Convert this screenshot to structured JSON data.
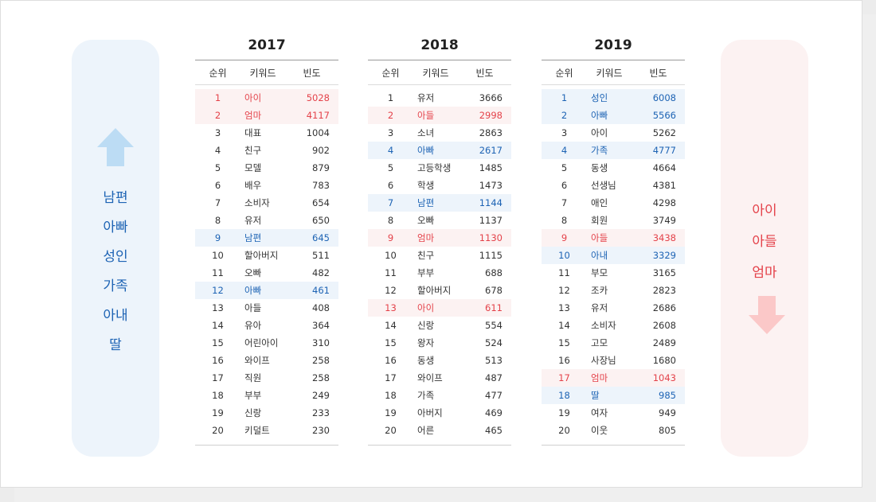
{
  "left_panel": {
    "words": [
      "남편",
      "아빠",
      "성인",
      "가족",
      "아내",
      "딸"
    ],
    "color": "#1d63b4",
    "bg": "#edf4fb",
    "icon": "arrow-up-icon"
  },
  "right_panel": {
    "words": [
      "아이",
      "아들",
      "엄마"
    ],
    "color": "#e4424a",
    "bg": "#fcf2f2",
    "icon": "arrow-down-icon"
  },
  "headers": {
    "rank": "순위",
    "keyword": "키워드",
    "freq": "빈도"
  },
  "tables": [
    {
      "year": "2017",
      "rows": [
        {
          "rank": "1",
          "kw": "아이",
          "freq": "5028",
          "hl": "red"
        },
        {
          "rank": "2",
          "kw": "엄마",
          "freq": "4117",
          "hl": "red"
        },
        {
          "rank": "3",
          "kw": "대표",
          "freq": "1004",
          "hl": ""
        },
        {
          "rank": "4",
          "kw": "친구",
          "freq": "902",
          "hl": ""
        },
        {
          "rank": "5",
          "kw": "모델",
          "freq": "879",
          "hl": ""
        },
        {
          "rank": "6",
          "kw": "배우",
          "freq": "783",
          "hl": ""
        },
        {
          "rank": "7",
          "kw": "소비자",
          "freq": "654",
          "hl": ""
        },
        {
          "rank": "8",
          "kw": "유저",
          "freq": "650",
          "hl": ""
        },
        {
          "rank": "9",
          "kw": "남편",
          "freq": "645",
          "hl": "blue"
        },
        {
          "rank": "10",
          "kw": "할아버지",
          "freq": "511",
          "hl": ""
        },
        {
          "rank": "11",
          "kw": "오빠",
          "freq": "482",
          "hl": ""
        },
        {
          "rank": "12",
          "kw": "아빠",
          "freq": "461",
          "hl": "blue"
        },
        {
          "rank": "13",
          "kw": "아들",
          "freq": "408",
          "hl": ""
        },
        {
          "rank": "14",
          "kw": "유아",
          "freq": "364",
          "hl": ""
        },
        {
          "rank": "15",
          "kw": "어린아이",
          "freq": "310",
          "hl": ""
        },
        {
          "rank": "16",
          "kw": "와이프",
          "freq": "258",
          "hl": ""
        },
        {
          "rank": "17",
          "kw": "직원",
          "freq": "258",
          "hl": ""
        },
        {
          "rank": "18",
          "kw": "부부",
          "freq": "249",
          "hl": ""
        },
        {
          "rank": "19",
          "kw": "신랑",
          "freq": "233",
          "hl": ""
        },
        {
          "rank": "20",
          "kw": "키덜트",
          "freq": "230",
          "hl": ""
        }
      ]
    },
    {
      "year": "2018",
      "rows": [
        {
          "rank": "1",
          "kw": "유저",
          "freq": "3666",
          "hl": ""
        },
        {
          "rank": "2",
          "kw": "아들",
          "freq": "2998",
          "hl": "red"
        },
        {
          "rank": "3",
          "kw": "소녀",
          "freq": "2863",
          "hl": ""
        },
        {
          "rank": "4",
          "kw": "아빠",
          "freq": "2617",
          "hl": "blue"
        },
        {
          "rank": "5",
          "kw": "고등학생",
          "freq": "1485",
          "hl": ""
        },
        {
          "rank": "6",
          "kw": "학생",
          "freq": "1473",
          "hl": ""
        },
        {
          "rank": "7",
          "kw": "남편",
          "freq": "1144",
          "hl": "blue"
        },
        {
          "rank": "8",
          "kw": "오빠",
          "freq": "1137",
          "hl": ""
        },
        {
          "rank": "9",
          "kw": "엄마",
          "freq": "1130",
          "hl": "red"
        },
        {
          "rank": "10",
          "kw": "친구",
          "freq": "1115",
          "hl": ""
        },
        {
          "rank": "11",
          "kw": "부부",
          "freq": "688",
          "hl": ""
        },
        {
          "rank": "12",
          "kw": "할아버지",
          "freq": "678",
          "hl": ""
        },
        {
          "rank": "13",
          "kw": "아이",
          "freq": "611",
          "hl": "red"
        },
        {
          "rank": "14",
          "kw": "신랑",
          "freq": "554",
          "hl": ""
        },
        {
          "rank": "15",
          "kw": "왕자",
          "freq": "524",
          "hl": ""
        },
        {
          "rank": "16",
          "kw": "동생",
          "freq": "513",
          "hl": ""
        },
        {
          "rank": "17",
          "kw": "와이프",
          "freq": "487",
          "hl": ""
        },
        {
          "rank": "18",
          "kw": "가족",
          "freq": "477",
          "hl": ""
        },
        {
          "rank": "19",
          "kw": "아버지",
          "freq": "469",
          "hl": ""
        },
        {
          "rank": "20",
          "kw": "어른",
          "freq": "465",
          "hl": ""
        }
      ]
    },
    {
      "year": "2019",
      "rows": [
        {
          "rank": "1",
          "kw": "성인",
          "freq": "6008",
          "hl": "blue"
        },
        {
          "rank": "2",
          "kw": "아빠",
          "freq": "5566",
          "hl": "blue"
        },
        {
          "rank": "3",
          "kw": "아이",
          "freq": "5262",
          "hl": ""
        },
        {
          "rank": "4",
          "kw": "가족",
          "freq": "4777",
          "hl": "blue"
        },
        {
          "rank": "5",
          "kw": "동생",
          "freq": "4664",
          "hl": ""
        },
        {
          "rank": "6",
          "kw": "선생님",
          "freq": "4381",
          "hl": ""
        },
        {
          "rank": "7",
          "kw": "애인",
          "freq": "4298",
          "hl": ""
        },
        {
          "rank": "8",
          "kw": "회원",
          "freq": "3749",
          "hl": ""
        },
        {
          "rank": "9",
          "kw": "아들",
          "freq": "3438",
          "hl": "red"
        },
        {
          "rank": "10",
          "kw": "아내",
          "freq": "3329",
          "hl": "blue"
        },
        {
          "rank": "11",
          "kw": "부모",
          "freq": "3165",
          "hl": ""
        },
        {
          "rank": "12",
          "kw": "조카",
          "freq": "2823",
          "hl": ""
        },
        {
          "rank": "13",
          "kw": "유저",
          "freq": "2686",
          "hl": ""
        },
        {
          "rank": "14",
          "kw": "소비자",
          "freq": "2608",
          "hl": ""
        },
        {
          "rank": "15",
          "kw": "고모",
          "freq": "2489",
          "hl": ""
        },
        {
          "rank": "16",
          "kw": "사장님",
          "freq": "1680",
          "hl": ""
        },
        {
          "rank": "17",
          "kw": "엄마",
          "freq": "1043",
          "hl": "red"
        },
        {
          "rank": "18",
          "kw": "딸",
          "freq": "985",
          "hl": "blue"
        },
        {
          "rank": "19",
          "kw": "여자",
          "freq": "949",
          "hl": ""
        },
        {
          "rank": "20",
          "kw": "이웃",
          "freq": "805",
          "hl": ""
        }
      ]
    }
  ]
}
